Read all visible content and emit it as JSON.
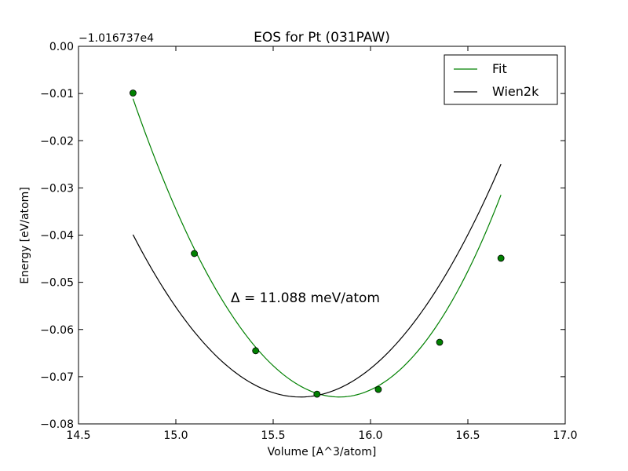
{
  "chart_data": {
    "type": "line",
    "title": "EOS for Pt (031PAW)",
    "xlabel": "Volume [A^3/atom]",
    "ylabel": "Energy [eV/atom]",
    "y_offset_label": "−1.016737e4",
    "xlim": [
      14.5,
      17.0
    ],
    "ylim": [
      -0.08,
      0.0
    ],
    "x_ticks": [
      14.5,
      15.0,
      15.5,
      16.0,
      16.5,
      17.0
    ],
    "x_tick_labels": [
      "14.5",
      "15.0",
      "15.5",
      "16.0",
      "16.5",
      "17.0"
    ],
    "y_ticks": [
      0.0,
      -0.01,
      -0.02,
      -0.03,
      -0.04,
      -0.05,
      -0.06,
      -0.07,
      -0.08
    ],
    "y_tick_labels": [
      "0.00",
      "−0.01",
      "−0.02",
      "−0.03",
      "−0.04",
      "−0.05",
      "−0.06",
      "−0.07",
      "−0.08"
    ],
    "grid": false,
    "legend_placement": "top-right",
    "annotation": "Δ = 11.088 meV/atom",
    "series": [
      {
        "name": "Fit",
        "color": "#008000",
        "kind": "curve",
        "v0": 15.84,
        "e0": -0.0743,
        "coeffs": [
          0.0583,
          0.00345,
          0.00143
        ],
        "x_range": [
          14.78,
          16.67
        ]
      },
      {
        "name": "Wien2k",
        "color": "#000000",
        "kind": "curve",
        "v0": 15.64,
        "e0": -0.0743,
        "coeffs": [
          0.0465,
          0.0,
          0.0
        ],
        "x_range": [
          14.78,
          16.67
        ]
      },
      {
        "name": "",
        "color": "#008000",
        "kind": "points",
        "x": [
          14.78,
          15.095,
          15.41,
          15.725,
          16.04,
          16.355,
          16.67
        ],
        "y": [
          -0.0099,
          -0.0439,
          -0.0645,
          -0.0737,
          -0.0727,
          -0.0627,
          -0.0449
        ]
      }
    ]
  }
}
